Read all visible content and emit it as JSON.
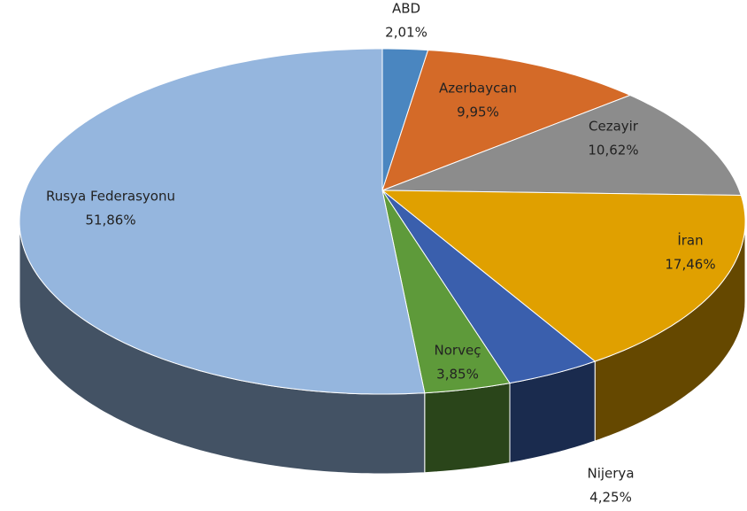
{
  "chart_data": {
    "type": "pie",
    "categories": [
      "ABD",
      "Azerbaycan",
      "Cezayir",
      "İran",
      "Nijerya",
      "Norveç",
      "Rusya Federasyonu"
    ],
    "values": [
      2.01,
      9.95,
      10.62,
      17.46,
      4.25,
      3.85,
      51.86
    ],
    "value_labels": [
      "2,01%",
      "9,95%",
      "10,62%",
      "17,46%",
      "4,25%",
      "3,85%",
      "51,86%"
    ],
    "colors": [
      "#4a86c0",
      "#d46a28",
      "#8c8c8c",
      "#e0a000",
      "#3a5fad",
      "#5e9a3a",
      "#95b6de"
    ]
  }
}
